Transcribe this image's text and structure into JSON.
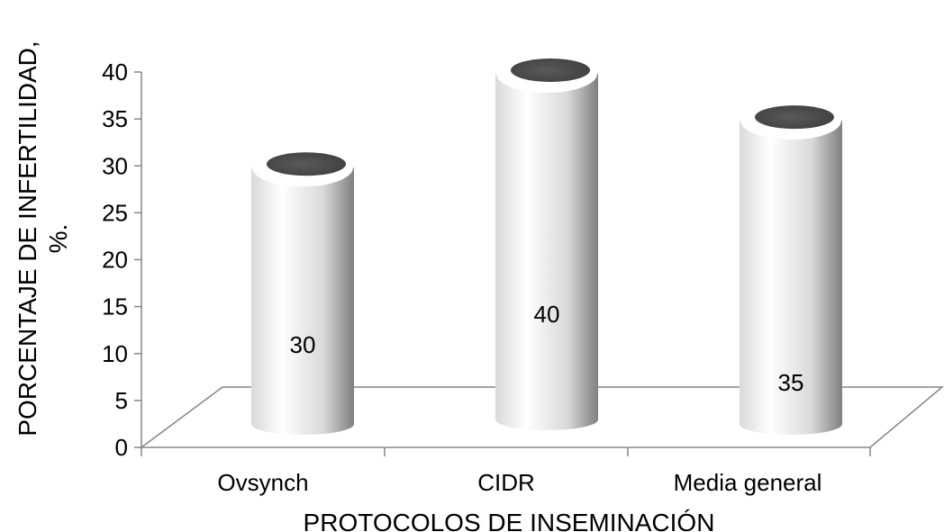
{
  "chart_data": {
    "type": "bar",
    "categories": [
      "Ovsynch",
      "CIDR",
      "Media general"
    ],
    "values": [
      30,
      40,
      35
    ],
    "data_labels": [
      "30",
      "40",
      "35"
    ],
    "xlabel": "PROTOCOLOS DE INSEMINACIÓN",
    "ylabel_line1": "PORCENTAJE DE INFERTILIDAD,",
    "ylabel_line2": "%.",
    "ylim": [
      0,
      40
    ],
    "y_ticks": [
      "0",
      "5",
      "10",
      "15",
      "20",
      "25",
      "30",
      "35",
      "40"
    ],
    "style": "3d-cylinder",
    "grid": false,
    "legend": "none",
    "colors": {
      "cylinder_light": "#ffffff",
      "cylinder_mid": "#d9d9d9",
      "cylinder_dark": "#7f7f7f",
      "cylinder_top": "#404040",
      "axis": "#868686"
    }
  }
}
